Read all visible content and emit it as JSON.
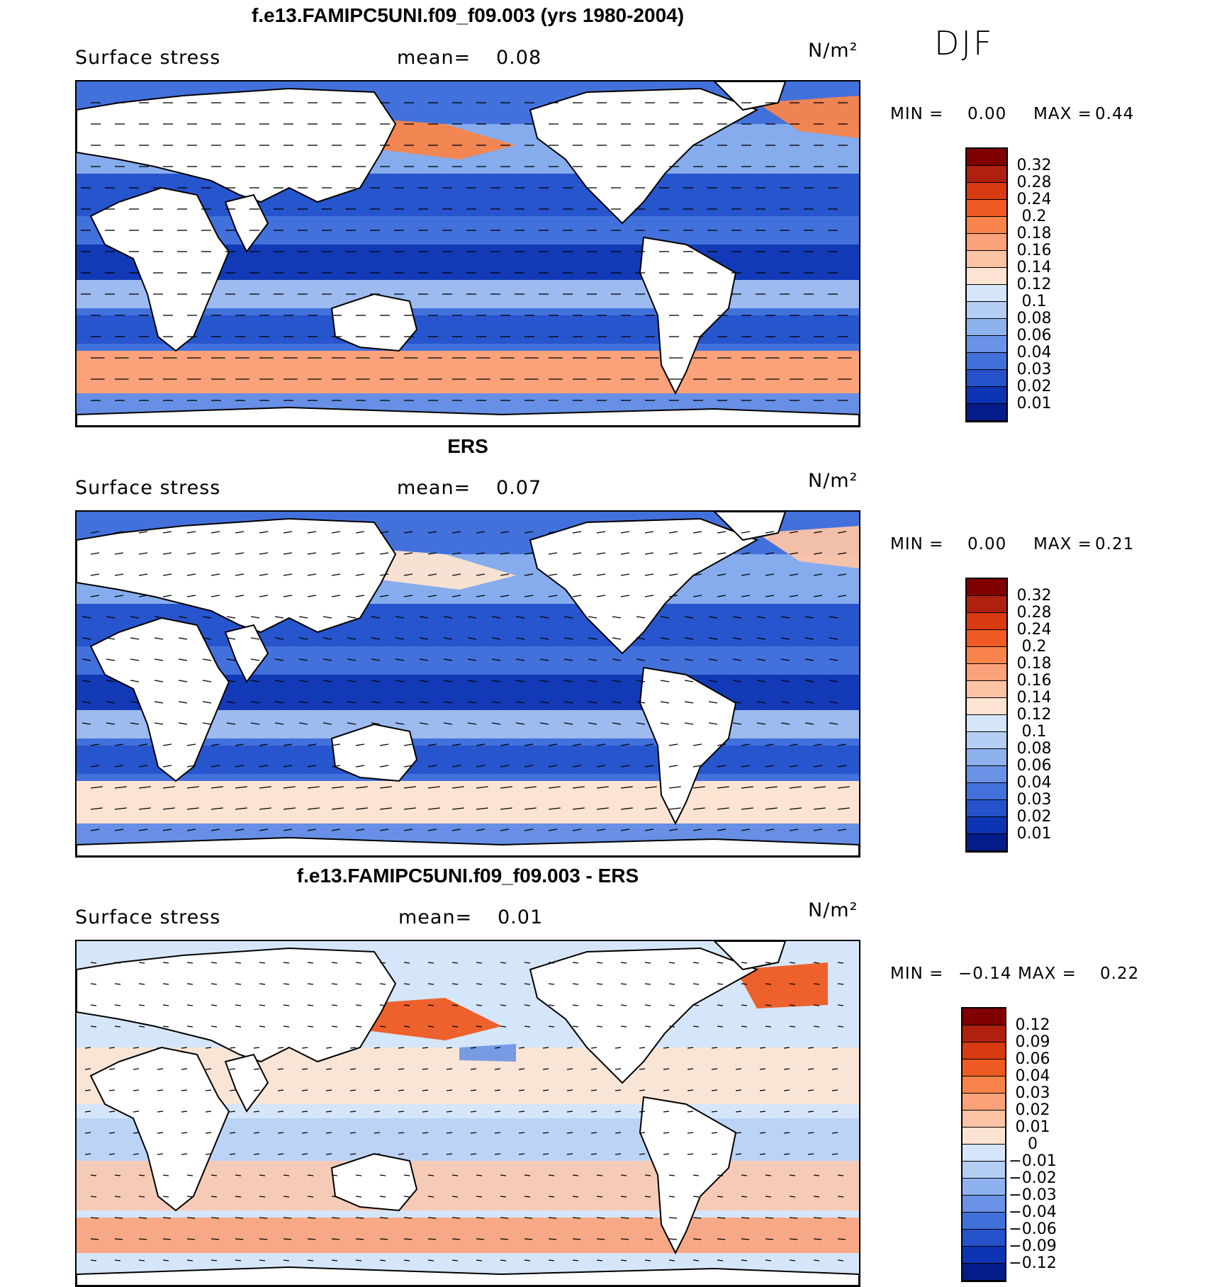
{
  "season": "DJF",
  "panels": [
    {
      "title": "f.e13.FAMIPC5UNI.f09_f09.003 (yrs 1980-2004)",
      "variable": "Surface stress",
      "mean_label": "mean=",
      "mean": "0.08",
      "units": "N/m²",
      "min_label": "MIN =",
      "min": "0.00",
      "max_label": "MAX =",
      "max": "0.44"
    },
    {
      "title": "ERS",
      "variable": "Surface stress",
      "mean_label": "mean=",
      "mean": "0.07",
      "units": "N/m²",
      "min_label": "MIN =",
      "min": "0.00",
      "max_label": "MAX =",
      "max": "0.21"
    },
    {
      "title": "f.e13.FAMIPC5UNI.f09_f09.003 - ERS",
      "variable": "Surface stress",
      "mean_label": "mean=",
      "mean": "0.01",
      "units": "N/m²",
      "min_label": "MIN =",
      "min": "−0.14",
      "max_label": "MAX =",
      "max": "0.22"
    }
  ],
  "chart_data": [
    {
      "type": "heatmap",
      "title": "f.e13.FAMIPC5UNI.f09_f09.003 (yrs 1980-2004)",
      "subtitle": "Surface stress",
      "mean": 0.08,
      "units": "N/m^2",
      "min": 0.0,
      "max": 0.44,
      "colorbar_levels": [
        "0.32",
        "0.28",
        "0.24",
        "0.2",
        "0.18",
        "0.16",
        "0.14",
        "0.12",
        "0.1",
        "0.08",
        "0.06",
        "0.04",
        "0.03",
        "0.02",
        "0.01"
      ],
      "colorbar_colors": [
        "#800000",
        "#b0200e",
        "#d83a12",
        "#ee5a22",
        "#f8844b",
        "#fba27a",
        "#fcc3a5",
        "#fde4d2",
        "#d6e6fa",
        "#b4cef4",
        "#8eb2ee",
        "#6a92e6",
        "#4371dc",
        "#2552cb",
        "#0d34b2",
        "#031c8a"
      ]
    },
    {
      "type": "heatmap",
      "title": "ERS",
      "subtitle": "Surface stress",
      "mean": 0.07,
      "units": "N/m^2",
      "min": 0.0,
      "max": 0.21,
      "colorbar_levels": [
        "0.32",
        "0.28",
        "0.24",
        "0.2",
        "0.18",
        "0.16",
        "0.14",
        "0.12",
        "0.1",
        "0.08",
        "0.06",
        "0.04",
        "0.03",
        "0.02",
        "0.01"
      ],
      "colorbar_colors": [
        "#800000",
        "#b0200e",
        "#d83a12",
        "#ee5a22",
        "#f8844b",
        "#fba27a",
        "#fcc3a5",
        "#fde4d2",
        "#d6e6fa",
        "#b4cef4",
        "#8eb2ee",
        "#6a92e6",
        "#4371dc",
        "#2552cb",
        "#0d34b2",
        "#031c8a"
      ]
    },
    {
      "type": "heatmap",
      "title": "f.e13.FAMIPC5UNI.f09_f09.003 - ERS",
      "subtitle": "Surface stress",
      "mean": 0.01,
      "units": "N/m^2",
      "min": -0.14,
      "max": 0.22,
      "colorbar_levels": [
        "0.12",
        "0.09",
        "0.06",
        "0.04",
        "0.03",
        "0.02",
        "0.01",
        "0",
        "−0.01",
        "−0.02",
        "−0.03",
        "−0.04",
        "−0.06",
        "−0.09",
        "−0.12"
      ],
      "colorbar_colors": [
        "#800000",
        "#b0200e",
        "#d83a12",
        "#ee5a22",
        "#f8844b",
        "#fba27a",
        "#fcc3a5",
        "#fde4d2",
        "#d6e6fa",
        "#b4cef4",
        "#8eb2ee",
        "#6a92e6",
        "#4371dc",
        "#2552cb",
        "#0d34b2",
        "#031c8a"
      ]
    }
  ]
}
